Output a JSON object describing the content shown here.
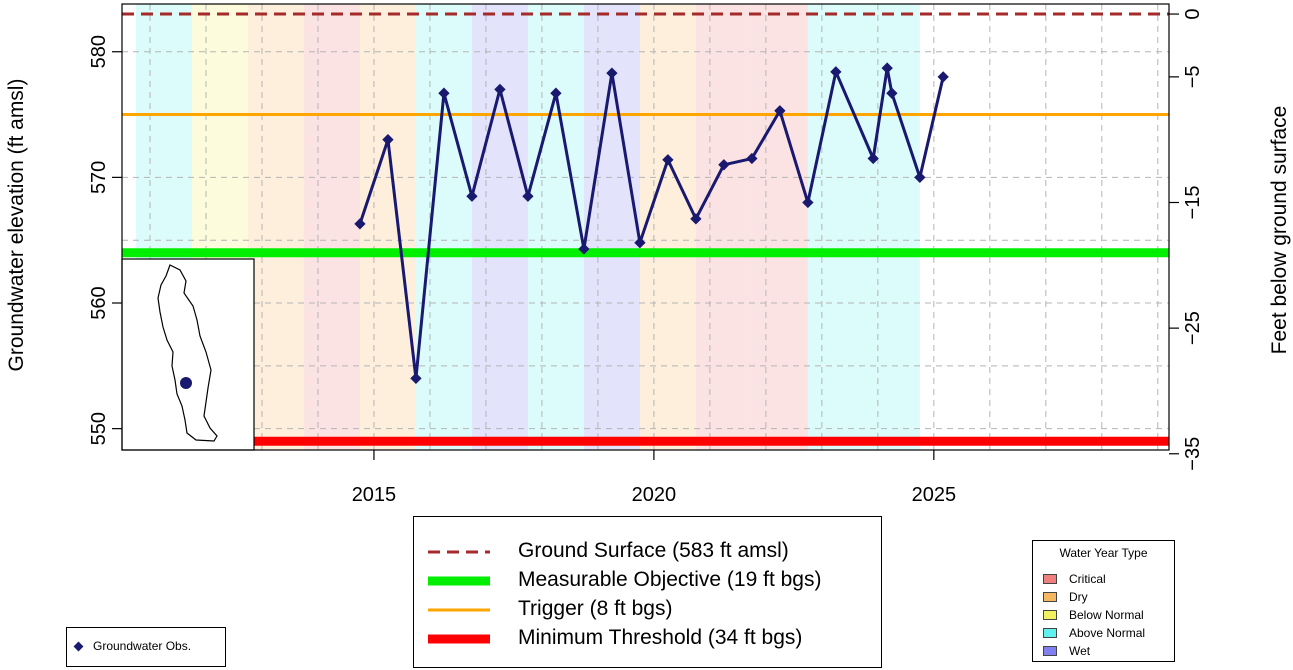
{
  "chart_data": {
    "type": "line",
    "title": "",
    "ylabel": "Groundwater elevation (ft amsl)",
    "y2label": "Feet below ground surface",
    "xlabel": "",
    "xlim": [
      2010.5,
      2029.2
    ],
    "ylim": [
      548.3,
      583.8
    ],
    "xticks": [
      2015,
      2020,
      2025
    ],
    "yticks": [
      550,
      560,
      570,
      580
    ],
    "y2ticks": [
      0,
      -5,
      -15,
      -25,
      -35
    ],
    "grid": true,
    "ground_surface": 583,
    "series": [
      {
        "name": "Groundwater Obs.",
        "color": "#191970",
        "marker": "diamond",
        "x": [
          "2014-10",
          "2015-04",
          "2015-10",
          "2016-04",
          "2016-10",
          "2017-04",
          "2017-10",
          "2018-04",
          "2018-10",
          "2019-04",
          "2019-10",
          "2020-04",
          "2020-10",
          "2021-04",
          "2021-10",
          "2022-04",
          "2022-10",
          "2023-04",
          "2023-12",
          "2024-03",
          "2024-04",
          "2024-10",
          "2025-03"
        ],
        "y": [
          566.3,
          573.0,
          554.0,
          576.7,
          568.5,
          577.0,
          568.5,
          576.7,
          564.3,
          578.3,
          564.8,
          571.4,
          566.7,
          571.0,
          571.5,
          575.3,
          568.0,
          578.4,
          571.5,
          578.7,
          576.7,
          570.0,
          578.0
        ]
      }
    ],
    "reference_lines": [
      {
        "label": "Ground Surface (583 ft amsl)",
        "value": 583,
        "color": "#a52a2a",
        "style": "dashed"
      },
      {
        "label": "Measurable Objective (19 ft bgs)",
        "value": 564,
        "color": "#00ee00",
        "style": "thick"
      },
      {
        "label": "Trigger (8 ft bgs)",
        "value": 575,
        "color": "#ffa500",
        "style": "solid"
      },
      {
        "label": "Minimum Threshold (34 ft bgs)",
        "value": 549,
        "color": "#ff0000",
        "style": "thick"
      }
    ],
    "water_year_types": {
      "title": "Water Year Type",
      "categories": [
        {
          "name": "Critical",
          "color": "#f08080"
        },
        {
          "name": "Dry",
          "color": "#f4b860"
        },
        {
          "name": "Below Normal",
          "color": "#f0f060"
        },
        {
          "name": "Above Normal",
          "color": "#60f0f0"
        },
        {
          "name": "Wet",
          "color": "#8080f0"
        }
      ],
      "bands": [
        {
          "start": "2010-10",
          "end": "2011-10",
          "type": "Above Normal"
        },
        {
          "start": "2011-10",
          "end": "2012-10",
          "type": "Below Normal"
        },
        {
          "start": "2012-10",
          "end": "2013-10",
          "type": "Dry"
        },
        {
          "start": "2013-10",
          "end": "2014-10",
          "type": "Critical"
        },
        {
          "start": "2014-10",
          "end": "2015-10",
          "type": "Dry"
        },
        {
          "start": "2015-10",
          "end": "2016-10",
          "type": "Above Normal"
        },
        {
          "start": "2016-10",
          "end": "2017-10",
          "type": "Wet"
        },
        {
          "start": "2017-10",
          "end": "2018-10",
          "type": "Above Normal"
        },
        {
          "start": "2018-10",
          "end": "2019-10",
          "type": "Wet"
        },
        {
          "start": "2019-10",
          "end": "2020-10",
          "type": "Dry"
        },
        {
          "start": "2020-10",
          "end": "2021-10",
          "type": "Critical"
        },
        {
          "start": "2021-10",
          "end": "2022-10",
          "type": "Critical"
        },
        {
          "start": "2022-10",
          "end": "2023-10",
          "type": "Above Normal"
        },
        {
          "start": "2023-10",
          "end": "2024-10",
          "type": "Above Normal"
        }
      ]
    }
  },
  "legend": {
    "groundwater_obs": "Groundwater Obs."
  }
}
